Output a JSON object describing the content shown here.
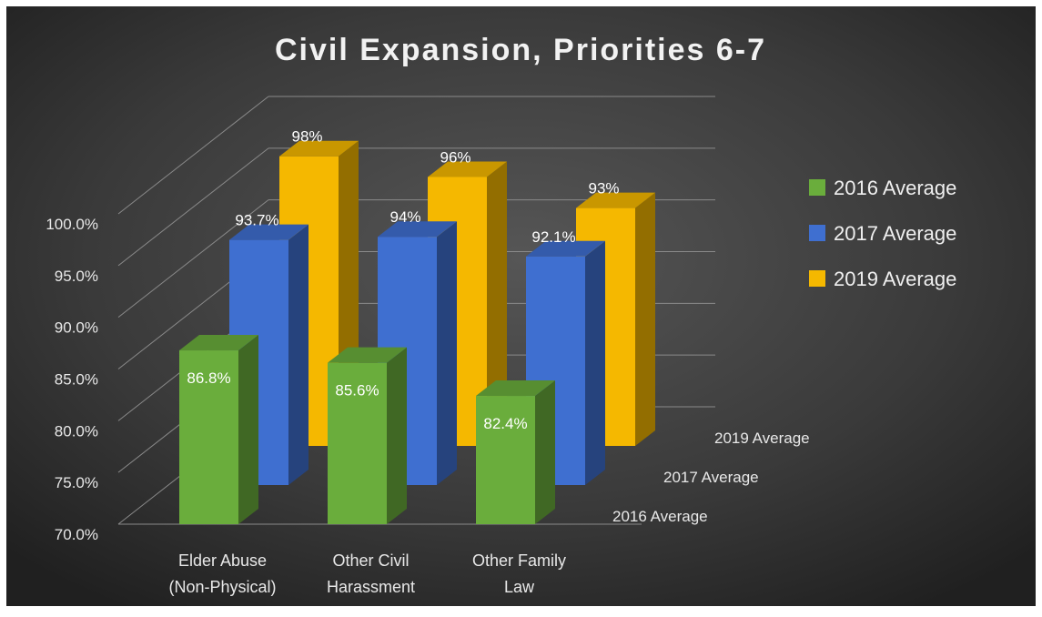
{
  "chart_data": {
    "type": "bar",
    "variant": "3d-column",
    "title": "Civil Expansion, Priorities 6-7",
    "categories": [
      "Elder Abuse (Non-Physical)",
      "Other Civil Harassment",
      "Other Family Law"
    ],
    "category_lines": [
      [
        "Elder Abuse",
        "(Non-Physical)"
      ],
      [
        "Other Civil",
        "Harassment"
      ],
      [
        "Other Family",
        "Law"
      ]
    ],
    "series": [
      {
        "name": "2016 Average",
        "values": [
          86.8,
          85.6,
          82.4
        ],
        "labels": [
          "86.8%",
          "85.6%",
          "82.4%"
        ],
        "color": "#6aad3c"
      },
      {
        "name": "2017 Average",
        "values": [
          93.7,
          94,
          92.1
        ],
        "labels": [
          "93.7%",
          "94%",
          "92.1%"
        ],
        "color": "#3f6fd0"
      },
      {
        "name": "2019 Average",
        "values": [
          98,
          96,
          93
        ],
        "labels": [
          "98%",
          "96%",
          "93%"
        ],
        "color": "#f5b800"
      }
    ],
    "depth_labels": [
      "2016 Average",
      "2017 Average",
      "2019 Average"
    ],
    "yticks": [
      "70.0%",
      "75.0%",
      "80.0%",
      "85.0%",
      "90.0%",
      "95.0%",
      "100.0%"
    ],
    "ylim": [
      70,
      100
    ],
    "grid": true,
    "legend": "right",
    "background": "#2b2b2b"
  }
}
